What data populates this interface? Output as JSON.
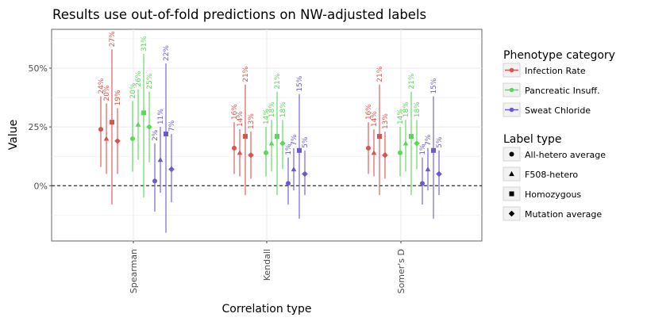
{
  "chart_data": {
    "type": "scatter",
    "title": "Results use out-of-fold predictions on NW-adjusted labels",
    "xlabel": "Correlation type",
    "ylabel": "Value",
    "categories": [
      "Spearman",
      "Kendall",
      "Somer's D"
    ],
    "y_ticks": [
      {
        "value": 0,
        "label": "0%"
      },
      {
        "value": 0.25,
        "label": "25%"
      },
      {
        "value": 0.5,
        "label": "50%"
      }
    ],
    "ylim": [
      -0.235,
      0.665
    ],
    "reference_line": {
      "y": 0,
      "style": "dashed"
    },
    "grid": true,
    "legend_position": "right",
    "phenotype_legend": {
      "title": "Phenotype category",
      "entries": [
        {
          "label": "Infection Rate",
          "color": "#d9534f"
        },
        {
          "label": "Pancreatic Insuff.",
          "color": "#5cd65c"
        },
        {
          "label": "Sweat Chloride",
          "color": "#6a5acd"
        }
      ]
    },
    "label_type_legend": {
      "title": "Label type",
      "entries": [
        {
          "label": "All-hetero average",
          "shape": "circle"
        },
        {
          "label": "F508-hetero",
          "shape": "triangle"
        },
        {
          "label": "Homozygous",
          "shape": "square"
        },
        {
          "label": "Mutation average",
          "shape": "diamond"
        }
      ]
    },
    "series": [
      {
        "name": "Infection Rate",
        "color": "#d9534f",
        "points": [
          {
            "category": "Spearman",
            "label_type": "All-hetero average",
            "y": 0.24,
            "lo": 0.08,
            "hi": 0.38,
            "label": "24%"
          },
          {
            "category": "Spearman",
            "label_type": "F508-hetero",
            "y": 0.2,
            "lo": 0.05,
            "hi": 0.35,
            "label": "20%"
          },
          {
            "category": "Spearman",
            "label_type": "Homozygous",
            "y": 0.27,
            "lo": -0.08,
            "hi": 0.58,
            "label": "27%"
          },
          {
            "category": "Spearman",
            "label_type": "Mutation average",
            "y": 0.19,
            "lo": 0.05,
            "hi": 0.33,
            "label": "19%"
          },
          {
            "category": "Kendall",
            "label_type": "All-hetero average",
            "y": 0.16,
            "lo": 0.05,
            "hi": 0.27,
            "label": "16%"
          },
          {
            "category": "Kendall",
            "label_type": "F508-hetero",
            "y": 0.14,
            "lo": 0.04,
            "hi": 0.24,
            "label": "14%"
          },
          {
            "category": "Kendall",
            "label_type": "Homozygous",
            "y": 0.21,
            "lo": -0.04,
            "hi": 0.43,
            "label": "21%"
          },
          {
            "category": "Kendall",
            "label_type": "Mutation average",
            "y": 0.13,
            "lo": 0.03,
            "hi": 0.23,
            "label": "13%"
          },
          {
            "category": "Somer's D",
            "label_type": "All-hetero average",
            "y": 0.16,
            "lo": 0.05,
            "hi": 0.27,
            "label": "16%"
          },
          {
            "category": "Somer's D",
            "label_type": "F508-hetero",
            "y": 0.14,
            "lo": 0.04,
            "hi": 0.24,
            "label": "14%"
          },
          {
            "category": "Somer's D",
            "label_type": "Homozygous",
            "y": 0.21,
            "lo": -0.04,
            "hi": 0.43,
            "label": "21%"
          },
          {
            "category": "Somer's D",
            "label_type": "Mutation average",
            "y": 0.13,
            "lo": 0.03,
            "hi": 0.23,
            "label": "13%"
          }
        ]
      },
      {
        "name": "Pancreatic Insuff.",
        "color": "#5cd65c",
        "points": [
          {
            "category": "Spearman",
            "label_type": "All-hetero average",
            "y": 0.2,
            "lo": 0.06,
            "hi": 0.36,
            "label": "20%"
          },
          {
            "category": "Spearman",
            "label_type": "F508-hetero",
            "y": 0.26,
            "lo": 0.11,
            "hi": 0.41,
            "label": "26%"
          },
          {
            "category": "Spearman",
            "label_type": "Homozygous",
            "y": 0.31,
            "lo": -0.05,
            "hi": 0.56,
            "label": "31%"
          },
          {
            "category": "Spearman",
            "label_type": "Mutation average",
            "y": 0.25,
            "lo": 0.1,
            "hi": 0.4,
            "label": "25%"
          },
          {
            "category": "Kendall",
            "label_type": "All-hetero average",
            "y": 0.14,
            "lo": 0.04,
            "hi": 0.25,
            "label": "14%"
          },
          {
            "category": "Kendall",
            "label_type": "F508-hetero",
            "y": 0.18,
            "lo": 0.06,
            "hi": 0.28,
            "label": "18%"
          },
          {
            "category": "Kendall",
            "label_type": "Homozygous",
            "y": 0.21,
            "lo": -0.04,
            "hi": 0.4,
            "label": "21%"
          },
          {
            "category": "Kendall",
            "label_type": "Mutation average",
            "y": 0.18,
            "lo": 0.07,
            "hi": 0.28,
            "label": "18%"
          },
          {
            "category": "Somer's D",
            "label_type": "All-hetero average",
            "y": 0.14,
            "lo": 0.04,
            "hi": 0.25,
            "label": "14%"
          },
          {
            "category": "Somer's D",
            "label_type": "F508-hetero",
            "y": 0.18,
            "lo": 0.06,
            "hi": 0.28,
            "label": "18%"
          },
          {
            "category": "Somer's D",
            "label_type": "Homozygous",
            "y": 0.21,
            "lo": -0.04,
            "hi": 0.4,
            "label": "21%"
          },
          {
            "category": "Somer's D",
            "label_type": "Mutation average",
            "y": 0.18,
            "lo": 0.07,
            "hi": 0.28,
            "label": "18%"
          }
        ]
      },
      {
        "name": "Sweat Chloride",
        "color": "#6a5acd",
        "points": [
          {
            "category": "Spearman",
            "label_type": "All-hetero average",
            "y": 0.02,
            "lo": -0.11,
            "hi": 0.18,
            "label": "2%"
          },
          {
            "category": "Spearman",
            "label_type": "F508-hetero",
            "y": 0.11,
            "lo": -0.03,
            "hi": 0.25,
            "label": "11%"
          },
          {
            "category": "Spearman",
            "label_type": "Homozygous",
            "y": 0.22,
            "lo": -0.2,
            "hi": 0.52,
            "label": "22%"
          },
          {
            "category": "Spearman",
            "label_type": "Mutation average",
            "y": 0.07,
            "lo": -0.07,
            "hi": 0.22,
            "label": "7%"
          },
          {
            "category": "Kendall",
            "label_type": "All-hetero average",
            "y": 0.01,
            "lo": -0.08,
            "hi": 0.12,
            "label": "1%"
          },
          {
            "category": "Kendall",
            "label_type": "F508-hetero",
            "y": 0.07,
            "lo": -0.02,
            "hi": 0.16,
            "label": "7%"
          },
          {
            "category": "Kendall",
            "label_type": "Homozygous",
            "y": 0.15,
            "lo": -0.14,
            "hi": 0.39,
            "label": "15%"
          },
          {
            "category": "Kendall",
            "label_type": "Mutation average",
            "y": 0.05,
            "lo": -0.04,
            "hi": 0.15,
            "label": "5%"
          },
          {
            "category": "Somer's D",
            "label_type": "All-hetero average",
            "y": 0.01,
            "lo": -0.08,
            "hi": 0.12,
            "label": "1%"
          },
          {
            "category": "Somer's D",
            "label_type": "F508-hetero",
            "y": 0.07,
            "lo": -0.02,
            "hi": 0.16,
            "label": "7%"
          },
          {
            "category": "Somer's D",
            "label_type": "Homozygous",
            "y": 0.15,
            "lo": -0.14,
            "hi": 0.38,
            "label": "15%"
          },
          {
            "category": "Somer's D",
            "label_type": "Mutation average",
            "y": 0.05,
            "lo": -0.04,
            "hi": 0.15,
            "label": "5%"
          }
        ]
      }
    ]
  }
}
